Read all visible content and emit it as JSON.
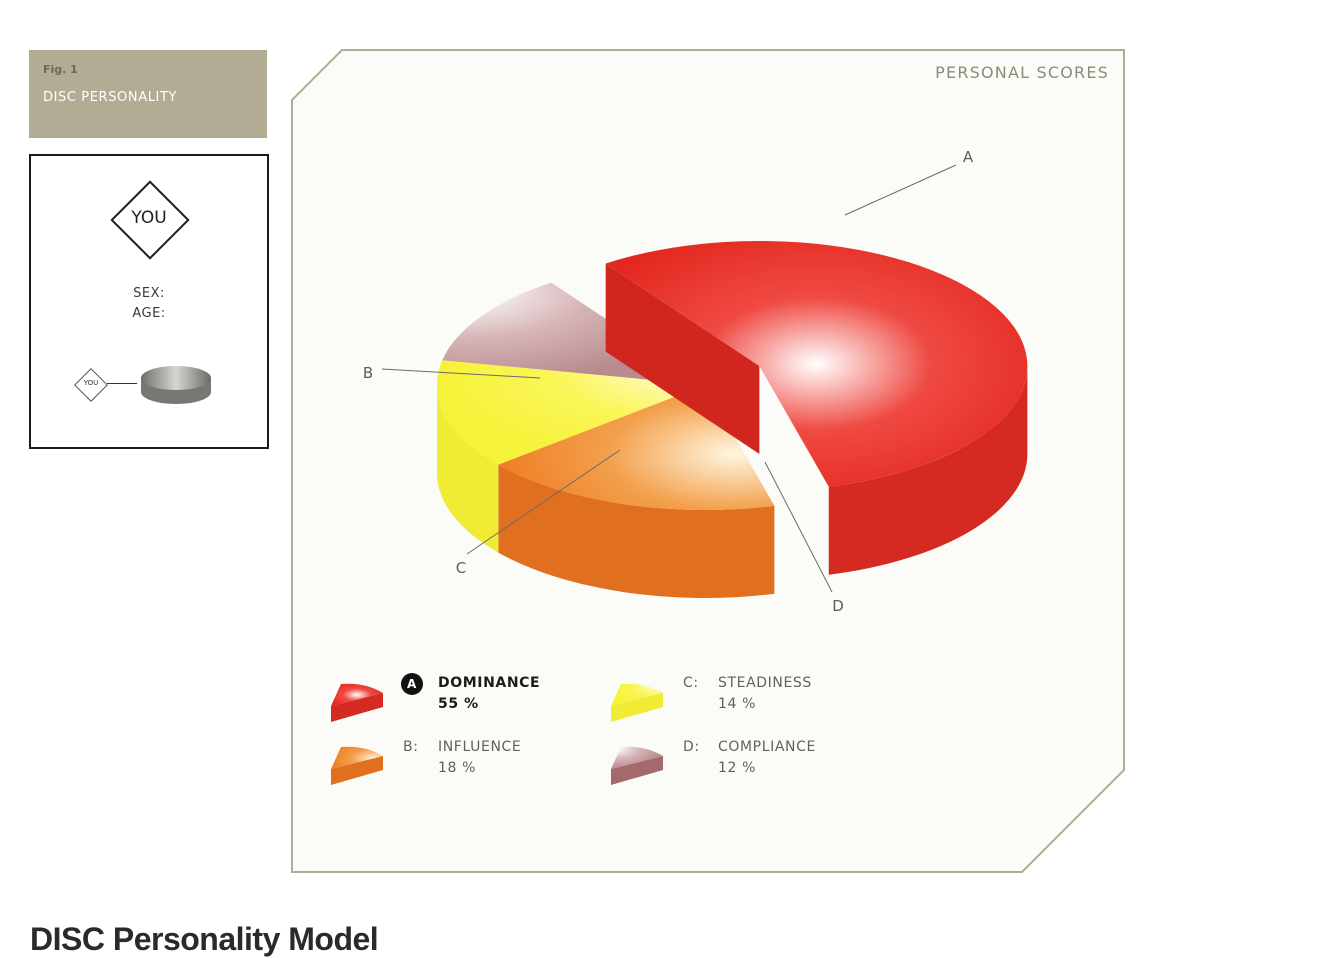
{
  "figure": {
    "fig_label": "Fig. 1",
    "fig_title": "DISC PERSONALITY"
  },
  "profile": {
    "you_label": "YOU",
    "sex_label": "SEX:",
    "age_label": "AGE:",
    "mini_you_label": "YOU"
  },
  "page_title": "DISC Personality Model",
  "colors": {
    "frame": "#b3ac95",
    "dominance": "#e3281f",
    "influence": "#ee7a22",
    "steadiness": "#f5f23a",
    "compliance": "#a8686d"
  },
  "chart_data": {
    "type": "pie",
    "title": "PERSONAL SCORES",
    "slices": [
      {
        "letter": "A",
        "name": "DOMINANCE",
        "value": 55,
        "label": "55 %",
        "color": "#e3281f",
        "exploded": true,
        "selected": true
      },
      {
        "letter": "B",
        "name": "INFLUENCE",
        "value": 18,
        "label": "18 %",
        "color": "#ee7a22"
      },
      {
        "letter": "C",
        "name": "STEADINESS",
        "value": 14,
        "label": "14 %",
        "color": "#f5f23a"
      },
      {
        "letter": "D",
        "name": "COMPLIANCE",
        "value": 12,
        "label": "12 %",
        "color": "#a8686d"
      }
    ],
    "legend_letters": {
      "A": "A",
      "B": "B:",
      "C": "C:",
      "D": "D:"
    }
  }
}
